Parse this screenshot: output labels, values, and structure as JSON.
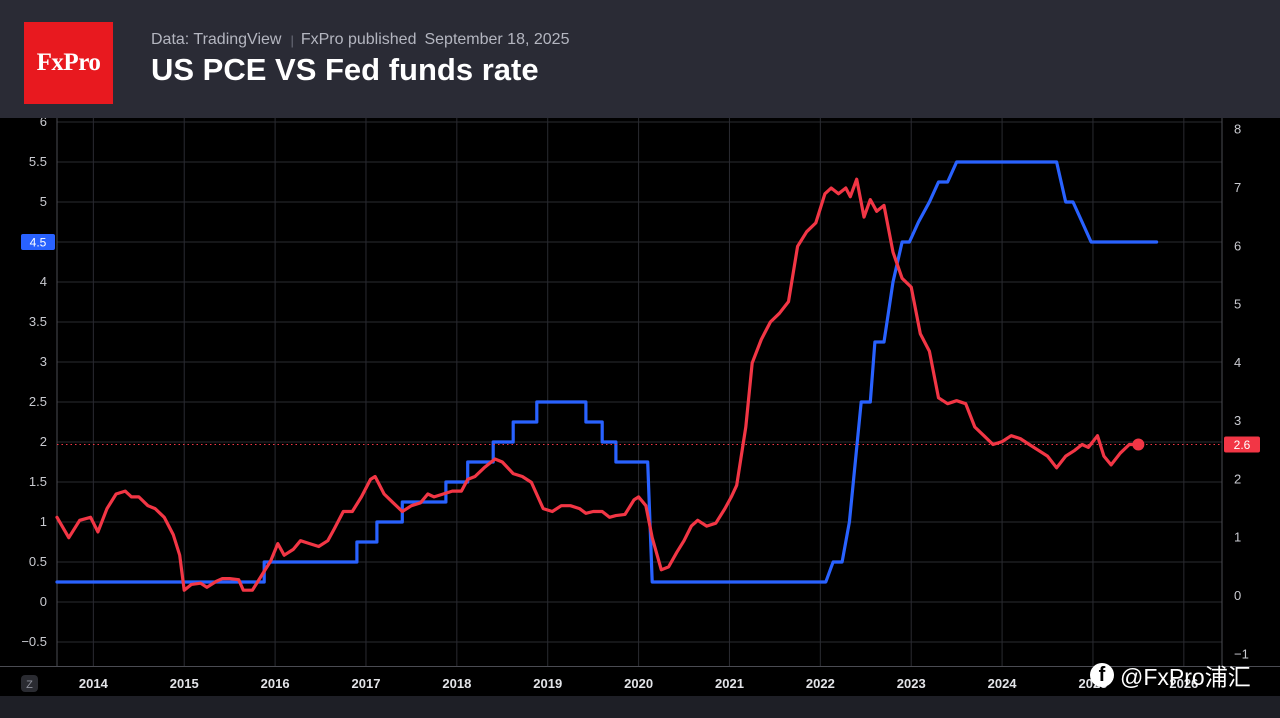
{
  "header": {
    "logo_text": "FxPro",
    "source": "Data: TradingView",
    "publisher": "FxPro published",
    "date": "September 18, 2025",
    "title": "US PCE VS Fed funds rate"
  },
  "watermark": {
    "icon": "facebook-icon",
    "text": "@FxPro浦汇"
  },
  "axis_corner_label": "Z",
  "colors": {
    "fed_funds": "#2962ff",
    "pce": "#f23645",
    "background": "#000000",
    "header": "#2a2b35",
    "logo": "#e8191f"
  },
  "chart_data": {
    "type": "line",
    "title": "US PCE VS Fed funds rate",
    "x_ticks": [
      "2014",
      "2015",
      "2016",
      "2017",
      "2018",
      "2019",
      "2020",
      "2021",
      "2022",
      "2023",
      "2024",
      "2025",
      "2026"
    ],
    "x_range": [
      2013.6,
      2026.42
    ],
    "left_axis": {
      "ticks": [
        "6",
        "5.5",
        "5",
        "4.5",
        "4",
        "3.5",
        "3",
        "2.5",
        "2",
        "1.5",
        "1",
        "0.5",
        "0",
        "−0.5"
      ],
      "range": [
        -0.8,
        6.05
      ]
    },
    "right_axis": {
      "ticks": [
        "8",
        "7",
        "6",
        "5",
        "4",
        "3",
        "2",
        "1",
        "0",
        "−1"
      ],
      "range": [
        -1.2,
        8.2
      ]
    },
    "grid": true,
    "last_value_labels": {
      "fed_funds": "4.5",
      "pce": "2.6"
    },
    "series": [
      {
        "key": "fed_funds",
        "axis": "left",
        "step": true,
        "points": [
          [
            2013.6,
            0.25
          ],
          [
            2015.88,
            0.25
          ],
          [
            2015.88,
            0.5
          ],
          [
            2016.9,
            0.5
          ],
          [
            2016.9,
            0.75
          ],
          [
            2017.12,
            0.75
          ],
          [
            2017.12,
            1.0
          ],
          [
            2017.4,
            1.0
          ],
          [
            2017.4,
            1.25
          ],
          [
            2017.88,
            1.25
          ],
          [
            2017.88,
            1.5
          ],
          [
            2018.12,
            1.5
          ],
          [
            2018.12,
            1.75
          ],
          [
            2018.4,
            1.75
          ],
          [
            2018.4,
            2.0
          ],
          [
            2018.62,
            2.0
          ],
          [
            2018.62,
            2.25
          ],
          [
            2018.88,
            2.25
          ],
          [
            2018.88,
            2.5
          ],
          [
            2019.42,
            2.5
          ],
          [
            2019.42,
            2.25
          ],
          [
            2019.6,
            2.25
          ],
          [
            2019.6,
            2.0
          ],
          [
            2019.75,
            2.0
          ],
          [
            2019.75,
            1.75
          ],
          [
            2020.1,
            1.75
          ],
          [
            2020.15,
            0.25
          ],
          [
            2022.06,
            0.25
          ],
          [
            2022.14,
            0.5
          ],
          [
            2022.24,
            0.5
          ],
          [
            2022.32,
            1.0
          ],
          [
            2022.45,
            2.5
          ],
          [
            2022.55,
            2.5
          ],
          [
            2022.6,
            3.25
          ],
          [
            2022.7,
            3.25
          ],
          [
            2022.8,
            4.0
          ],
          [
            2022.9,
            4.5
          ],
          [
            2022.98,
            4.5
          ],
          [
            2023.08,
            4.75
          ],
          [
            2023.2,
            5.0
          ],
          [
            2023.3,
            5.25
          ],
          [
            2023.4,
            5.25
          ],
          [
            2023.5,
            5.5
          ],
          [
            2024.6,
            5.5
          ],
          [
            2024.7,
            5.0
          ],
          [
            2024.78,
            5.0
          ],
          [
            2024.88,
            4.75
          ],
          [
            2024.98,
            4.5
          ],
          [
            2025.7,
            4.5
          ]
        ]
      },
      {
        "key": "pce",
        "axis": "right",
        "step": false,
        "points": [
          [
            2013.6,
            1.35
          ],
          [
            2013.73,
            1.0
          ],
          [
            2013.85,
            1.3
          ],
          [
            2013.97,
            1.35
          ],
          [
            2014.05,
            1.1
          ],
          [
            2014.15,
            1.5
          ],
          [
            2014.25,
            1.75
          ],
          [
            2014.35,
            1.8
          ],
          [
            2014.42,
            1.7
          ],
          [
            2014.5,
            1.7
          ],
          [
            2014.6,
            1.55
          ],
          [
            2014.68,
            1.5
          ],
          [
            2014.78,
            1.35
          ],
          [
            2014.88,
            1.05
          ],
          [
            2014.95,
            0.7
          ],
          [
            2015.0,
            0.1
          ],
          [
            2015.08,
            0.2
          ],
          [
            2015.18,
            0.22
          ],
          [
            2015.25,
            0.15
          ],
          [
            2015.35,
            0.25
          ],
          [
            2015.42,
            0.3
          ],
          [
            2015.5,
            0.3
          ],
          [
            2015.6,
            0.28
          ],
          [
            2015.65,
            0.1
          ],
          [
            2015.75,
            0.1
          ],
          [
            2015.85,
            0.35
          ],
          [
            2015.95,
            0.6
          ],
          [
            2016.03,
            0.9
          ],
          [
            2016.1,
            0.7
          ],
          [
            2016.2,
            0.8
          ],
          [
            2016.28,
            0.95
          ],
          [
            2016.38,
            0.9
          ],
          [
            2016.48,
            0.85
          ],
          [
            2016.58,
            0.95
          ],
          [
            2016.65,
            1.15
          ],
          [
            2016.75,
            1.45
          ],
          [
            2016.85,
            1.45
          ],
          [
            2016.95,
            1.7
          ],
          [
            2017.05,
            2.0
          ],
          [
            2017.1,
            2.05
          ],
          [
            2017.2,
            1.75
          ],
          [
            2017.3,
            1.6
          ],
          [
            2017.4,
            1.45
          ],
          [
            2017.5,
            1.55
          ],
          [
            2017.6,
            1.6
          ],
          [
            2017.68,
            1.75
          ],
          [
            2017.75,
            1.7
          ],
          [
            2017.85,
            1.75
          ],
          [
            2017.95,
            1.8
          ],
          [
            2018.05,
            1.8
          ],
          [
            2018.12,
            2.0
          ],
          [
            2018.2,
            2.05
          ],
          [
            2018.3,
            2.2
          ],
          [
            2018.42,
            2.35
          ],
          [
            2018.5,
            2.3
          ],
          [
            2018.62,
            2.1
          ],
          [
            2018.72,
            2.05
          ],
          [
            2018.82,
            1.95
          ],
          [
            2018.95,
            1.5
          ],
          [
            2019.05,
            1.45
          ],
          [
            2019.15,
            1.55
          ],
          [
            2019.25,
            1.55
          ],
          [
            2019.35,
            1.5
          ],
          [
            2019.42,
            1.42
          ],
          [
            2019.5,
            1.45
          ],
          [
            2019.6,
            1.45
          ],
          [
            2019.68,
            1.35
          ],
          [
            2019.75,
            1.38
          ],
          [
            2019.85,
            1.4
          ],
          [
            2019.95,
            1.65
          ],
          [
            2020.0,
            1.7
          ],
          [
            2020.08,
            1.55
          ],
          [
            2020.15,
            1.0
          ],
          [
            2020.25,
            0.45
          ],
          [
            2020.33,
            0.5
          ],
          [
            2020.42,
            0.75
          ],
          [
            2020.5,
            0.95
          ],
          [
            2020.58,
            1.2
          ],
          [
            2020.65,
            1.3
          ],
          [
            2020.75,
            1.2
          ],
          [
            2020.85,
            1.25
          ],
          [
            2020.95,
            1.5
          ],
          [
            2021.02,
            1.7
          ],
          [
            2021.08,
            1.9
          ],
          [
            2021.18,
            2.9
          ],
          [
            2021.25,
            4.0
          ],
          [
            2021.35,
            4.4
          ],
          [
            2021.45,
            4.7
          ],
          [
            2021.55,
            4.85
          ],
          [
            2021.65,
            5.05
          ],
          [
            2021.75,
            6.0
          ],
          [
            2021.85,
            6.25
          ],
          [
            2021.95,
            6.4
          ],
          [
            2022.05,
            6.9
          ],
          [
            2022.12,
            7.0
          ],
          [
            2022.2,
            6.9
          ],
          [
            2022.28,
            7.0
          ],
          [
            2022.33,
            6.85
          ],
          [
            2022.4,
            7.15
          ],
          [
            2022.48,
            6.5
          ],
          [
            2022.55,
            6.8
          ],
          [
            2022.62,
            6.6
          ],
          [
            2022.7,
            6.7
          ],
          [
            2022.8,
            5.9
          ],
          [
            2022.9,
            5.45
          ],
          [
            2023.0,
            5.3
          ],
          [
            2023.1,
            4.5
          ],
          [
            2023.2,
            4.2
          ],
          [
            2023.3,
            3.4
          ],
          [
            2023.4,
            3.3
          ],
          [
            2023.5,
            3.35
          ],
          [
            2023.6,
            3.3
          ],
          [
            2023.7,
            2.9
          ],
          [
            2023.8,
            2.75
          ],
          [
            2023.9,
            2.6
          ],
          [
            2024.0,
            2.65
          ],
          [
            2024.1,
            2.75
          ],
          [
            2024.2,
            2.7
          ],
          [
            2024.3,
            2.6
          ],
          [
            2024.4,
            2.5
          ],
          [
            2024.5,
            2.4
          ],
          [
            2024.6,
            2.2
          ],
          [
            2024.7,
            2.4
          ],
          [
            2024.8,
            2.5
          ],
          [
            2024.88,
            2.6
          ],
          [
            2024.95,
            2.55
          ],
          [
            2025.05,
            2.75
          ],
          [
            2025.12,
            2.4
          ],
          [
            2025.2,
            2.25
          ],
          [
            2025.3,
            2.45
          ],
          [
            2025.4,
            2.6
          ],
          [
            2025.5,
            2.6
          ]
        ]
      }
    ]
  }
}
